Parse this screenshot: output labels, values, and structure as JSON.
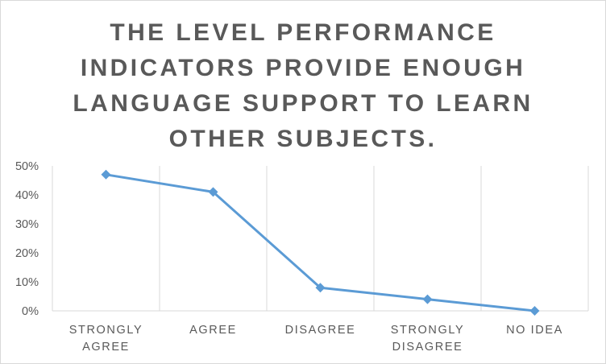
{
  "chart_data": {
    "type": "line",
    "title": "THE LEVEL PERFORMANCE INDICATORS PROVIDE ENOUGH LANGUAGE SUPPORT TO LEARN OTHER SUBJECTS.",
    "categories": [
      [
        "STRONGLY",
        "AGREE"
      ],
      [
        "AGREE"
      ],
      [
        "DISAGREE"
      ],
      [
        "STRONGLY",
        "DISAGREE"
      ],
      [
        "NO IDEA"
      ]
    ],
    "series": [
      {
        "values": [
          0.47,
          0.41,
          0.08,
          0.04,
          0.0
        ]
      }
    ],
    "y_ticks": [
      "0%",
      "10%",
      "20%",
      "30%",
      "40%",
      "50%"
    ],
    "ylim": [
      0,
      0.5
    ],
    "grid": "vertical category dividers",
    "line_color": "#5B9BD5",
    "marker": "diamond",
    "legend": "none"
  }
}
